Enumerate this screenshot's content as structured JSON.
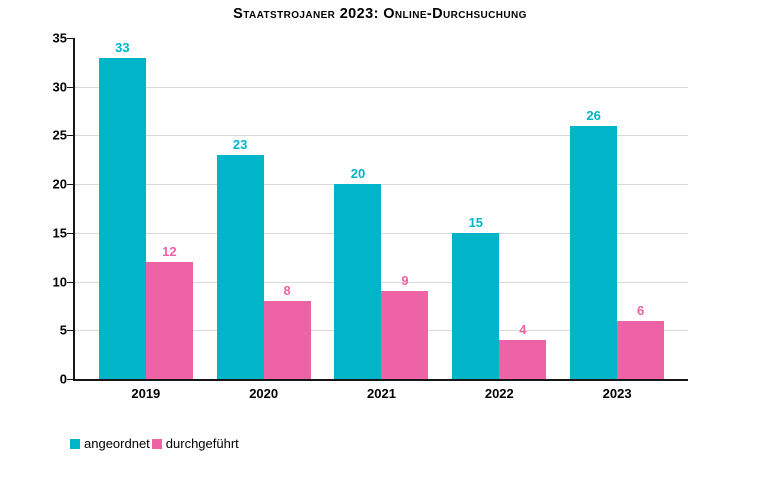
{
  "chart_data": {
    "type": "bar",
    "title": "Staatstrojaner 2023: Online-Durchsuchung",
    "categories": [
      "2019",
      "2020",
      "2021",
      "2022",
      "2023"
    ],
    "series": [
      {
        "name": "angeordnet",
        "color": "#00b5c8",
        "values": [
          33,
          23,
          20,
          15,
          26
        ]
      },
      {
        "name": "durchgeführt",
        "color": "#ee62a6",
        "values": [
          12,
          8,
          9,
          4,
          6
        ]
      }
    ],
    "ylim": [
      0,
      35
    ],
    "ytick_step": 5,
    "yticks": [
      "0",
      "5",
      "10",
      "15",
      "20",
      "25",
      "30",
      "35"
    ],
    "grid": true,
    "value_labels": true,
    "legend_position": "bottom-left"
  },
  "colors": {
    "teal": "#00b5c8",
    "pink": "#ee62a6",
    "grid": "#d9d9d9",
    "axis": "#161616",
    "text": "#000000",
    "background": "#ffffff"
  }
}
